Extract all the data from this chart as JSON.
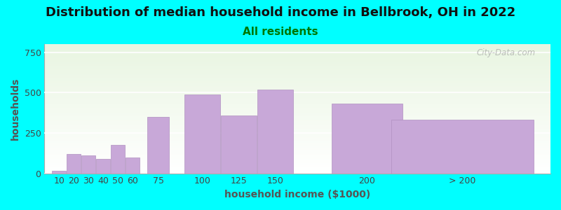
{
  "title": "Distribution of median household income in Bellbrook, OH in 2022",
  "subtitle": "All residents",
  "xlabel": "household income ($1000)",
  "ylabel": "households",
  "background_color": "#00FFFF",
  "bar_color": "#c8a8d8",
  "bar_edge_color": "#b090c0",
  "categories": [
    "10",
    "20",
    "30",
    "40",
    "50",
    "60",
    "75",
    "100",
    "125",
    "150",
    "200",
    "> 200"
  ],
  "values": [
    15,
    120,
    110,
    90,
    175,
    100,
    350,
    490,
    360,
    520,
    430,
    330
  ],
  "bar_widths": [
    10,
    10,
    10,
    10,
    10,
    10,
    15,
    25,
    25,
    25,
    50,
    100
  ],
  "bar_positions": [
    10,
    20,
    30,
    40,
    50,
    60,
    75,
    100,
    125,
    150,
    200,
    240
  ],
  "ylim": [
    0,
    800
  ],
  "yticks": [
    0,
    250,
    500,
    750
  ],
  "title_fontsize": 13,
  "subtitle_fontsize": 11,
  "axis_label_fontsize": 10,
  "tick_fontsize": 9,
  "watermark_text": "City-Data.com"
}
